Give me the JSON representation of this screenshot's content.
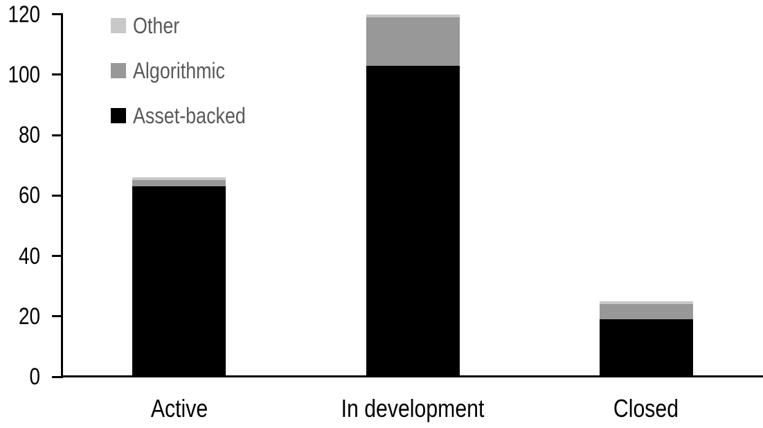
{
  "chart_data": {
    "type": "bar",
    "stacked": true,
    "title": "",
    "xlabel": "",
    "ylabel": "",
    "categories": [
      "Active",
      "In development",
      "Closed"
    ],
    "series": [
      {
        "name": "Asset-backed",
        "color": "#000000",
        "values": [
          63,
          103,
          19
        ]
      },
      {
        "name": "Algorithmic",
        "color": "#989898",
        "values": [
          2,
          16,
          5
        ]
      },
      {
        "name": "Other",
        "color": "#c8c8c8",
        "values": [
          1,
          1,
          1
        ]
      }
    ],
    "totals": [
      66,
      120,
      25
    ],
    "y_axis": {
      "min": 0,
      "max": 120,
      "tick_interval": 20,
      "tick_labels": [
        "0",
        "20",
        "40",
        "60",
        "80",
        "100",
        "120"
      ]
    },
    "legend": {
      "position": "top-left",
      "items": [
        {
          "label": "Other",
          "color": "#c8c8c8"
        },
        {
          "label": "Algorithmic",
          "color": "#989898"
        },
        {
          "label": "Asset-backed",
          "color": "#000000"
        }
      ]
    },
    "grid": false
  },
  "colors": {
    "axis": "#000000",
    "tick_label_text": "#000000",
    "legend_text": "#595959",
    "background": "#ffffff"
  }
}
